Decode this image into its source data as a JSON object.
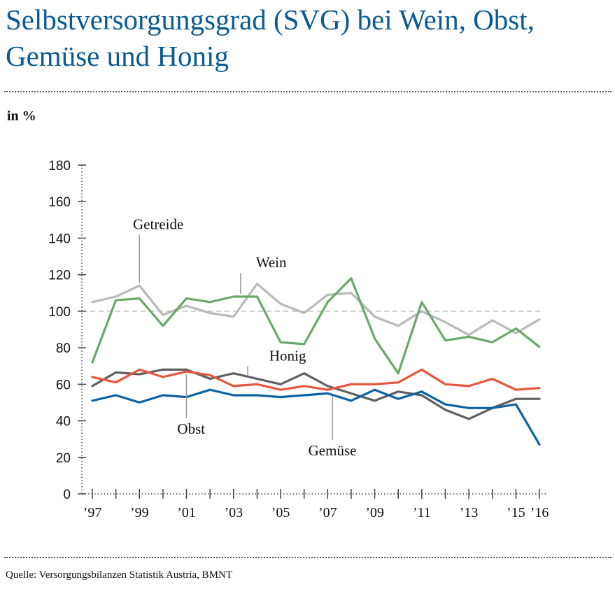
{
  "title": "Selbstversorgungsgrad (SVG) bei Wein, Obst, Gemüse und Honig",
  "unit_label": "in %",
  "source": "Quelle: Versorgungsbilanzen Statistik Austria, BMNT",
  "chart_data": {
    "type": "line",
    "x": [
      1997,
      1998,
      1999,
      2000,
      2001,
      2002,
      2003,
      2004,
      2005,
      2006,
      2007,
      2008,
      2009,
      2010,
      2011,
      2012,
      2013,
      2014,
      2015,
      2016
    ],
    "x_tick_labels": [
      {
        "x": 1997,
        "label": "’97"
      },
      {
        "x": 1999,
        "label": "’99"
      },
      {
        "x": 2001,
        "label": "’01"
      },
      {
        "x": 2003,
        "label": "’03"
      },
      {
        "x": 2005,
        "label": "’05"
      },
      {
        "x": 2007,
        "label": "’07"
      },
      {
        "x": 2009,
        "label": "’09"
      },
      {
        "x": 2011,
        "label": "’11"
      },
      {
        "x": 2013,
        "label": "’13"
      },
      {
        "x": 2015,
        "label": "’15"
      },
      {
        "x": 2016,
        "label": "’16"
      }
    ],
    "y_ticks": [
      0,
      20,
      40,
      60,
      80,
      100,
      120,
      140,
      160,
      180
    ],
    "ylim": [
      0,
      180
    ],
    "reference_line": 100,
    "series": [
      {
        "name": "Getreide",
        "color": "#b9b9b9",
        "label_x": 1999.8,
        "label_y": 145,
        "leader_x": 1999.0,
        "values": [
          105,
          108,
          114,
          98,
          103,
          99,
          97,
          115,
          104,
          99,
          109,
          110,
          97,
          92,
          100,
          94,
          87,
          95,
          88,
          95.5
        ]
      },
      {
        "name": "Wein",
        "color": "#6aa86a",
        "label_x": 2004.6,
        "label_y": 124,
        "leader_x": 2003.3,
        "values": [
          72,
          106,
          107,
          92,
          107,
          105,
          108,
          108,
          83,
          82,
          105,
          118,
          85,
          66,
          105,
          84,
          86,
          83,
          90.5,
          80.5
        ]
      },
      {
        "name": "Honig",
        "color": "#5f5f5f",
        "label_x": 2005.3,
        "label_y": 73,
        "leader_x": 2003.6,
        "values": [
          59,
          66.5,
          65.5,
          68,
          68,
          63,
          66,
          63,
          60,
          66,
          59,
          55,
          51,
          56,
          54,
          46,
          41,
          47,
          52,
          52
        ]
      },
      {
        "name": "Obst",
        "color": "#e8553a",
        "label_x": 2001.2,
        "label_y": 33,
        "leader_x": 2001.0,
        "values": [
          64,
          61,
          68,
          64,
          67,
          65,
          59,
          60,
          57,
          59,
          57,
          60,
          60,
          61,
          68,
          60,
          59,
          63,
          57,
          58
        ]
      },
      {
        "name": "Gemüse",
        "color": "#0b62a4",
        "label_x": 2007.2,
        "label_y": 21,
        "leader_x": 2007.2,
        "values": [
          51,
          54,
          50,
          54,
          53,
          57,
          54,
          54,
          53,
          54,
          55,
          51,
          57,
          52,
          56,
          49,
          47,
          47,
          49,
          27
        ]
      }
    ]
  }
}
